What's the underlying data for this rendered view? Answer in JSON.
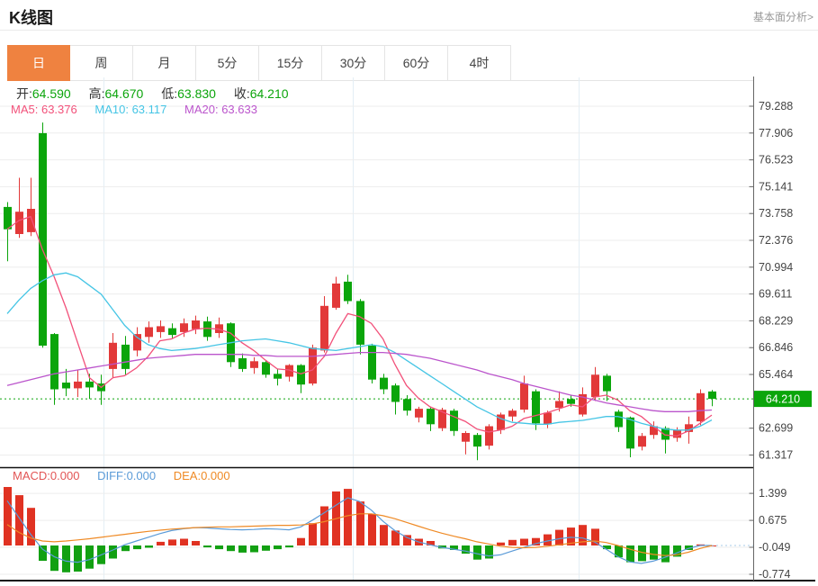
{
  "header": {
    "title": "K线图",
    "link": "基本面分析>"
  },
  "tabs": {
    "items": [
      "日",
      "周",
      "月",
      "5分",
      "15分",
      "30分",
      "60分",
      "4时"
    ],
    "selected_index": 0,
    "selected_label": "日"
  },
  "legend": {
    "ohlc": {
      "open": {
        "label": "开:",
        "value": "64.590"
      },
      "high": {
        "label": "高:",
        "value": "64.670"
      },
      "low": {
        "label": "低:",
        "value": "63.830"
      },
      "close": {
        "label": "收:",
        "value": "64.210"
      }
    },
    "ma": {
      "ma5": {
        "label": "MA5:",
        "value": "63.376"
      },
      "ma10": {
        "label": "MA10:",
        "value": "63.117"
      },
      "ma20": {
        "label": "MA20:",
        "value": "63.633"
      }
    },
    "macd": {
      "macd": {
        "label": "MACD:",
        "value": "0.000"
      },
      "diff": {
        "label": "DIFF:",
        "value": "0.000"
      },
      "dea": {
        "label": "DEA:",
        "value": "0.000"
      }
    }
  },
  "colors": {
    "up": "#e23939",
    "down": "#0ba50b",
    "ma5": "#f2517a",
    "ma10": "#45c5e5",
    "ma20": "#bb55cc",
    "diff": "#5b9bd8",
    "dea": "#ef8a25",
    "macd_label": "#e25555",
    "hist_up": "#e03222",
    "hist_down": "#12a012",
    "tab_active_bg": "#ef8240",
    "price_tag_bg": "#0ba50b",
    "grid": "#ededed",
    "vgrid": "#e3eef5",
    "axis": "#666666",
    "axis_text": "#444444"
  },
  "chart_data": {
    "type": "candlestick",
    "title": "K线图",
    "period": "日",
    "current_price": 64.21,
    "price_axis_ticks": [
      79.288,
      77.906,
      76.523,
      75.141,
      73.758,
      72.376,
      70.994,
      69.611,
      68.229,
      66.846,
      65.464,
      62.699,
      61.317
    ],
    "macd_axis_ticks": [
      1.399,
      0.675,
      -0.049,
      -0.774
    ],
    "candles": [
      [
        74.1,
        74.35,
        71.3,
        72.95
      ],
      [
        72.7,
        75.6,
        72.5,
        73.85
      ],
      [
        72.8,
        75.6,
        72.6,
        74.0
      ],
      [
        77.9,
        78.45,
        66.85,
        66.95
      ],
      [
        67.55,
        67.6,
        63.9,
        64.7
      ],
      [
        65.05,
        65.75,
        64.35,
        64.75
      ],
      [
        64.75,
        65.7,
        64.3,
        65.1
      ],
      [
        65.1,
        65.5,
        64.2,
        64.8
      ],
      [
        65.0,
        65.45,
        63.9,
        64.6
      ],
      [
        65.75,
        67.6,
        65.3,
        67.1
      ],
      [
        67.0,
        67.45,
        65.45,
        65.75
      ],
      [
        66.7,
        67.9,
        66.4,
        67.55
      ],
      [
        67.4,
        68.2,
        67.1,
        67.9
      ],
      [
        67.65,
        68.25,
        67.35,
        67.95
      ],
      [
        67.85,
        68.1,
        67.3,
        67.5
      ],
      [
        67.65,
        68.35,
        67.4,
        68.1
      ],
      [
        67.8,
        68.5,
        67.55,
        68.25
      ],
      [
        68.2,
        68.45,
        67.2,
        67.4
      ],
      [
        67.6,
        68.4,
        67.35,
        68.05
      ],
      [
        68.1,
        68.15,
        65.85,
        66.1
      ],
      [
        66.3,
        66.55,
        65.6,
        65.75
      ],
      [
        65.8,
        66.35,
        65.5,
        66.15
      ],
      [
        66.1,
        66.2,
        65.3,
        65.45
      ],
      [
        65.5,
        65.75,
        64.9,
        65.25
      ],
      [
        65.35,
        66.0,
        65.1,
        65.95
      ],
      [
        65.95,
        66.0,
        64.5,
        64.95
      ],
      [
        65.0,
        67.0,
        64.9,
        66.85
      ],
      [
        66.7,
        69.5,
        66.6,
        69.0
      ],
      [
        68.9,
        70.5,
        68.8,
        70.15
      ],
      [
        70.25,
        70.6,
        69.1,
        69.25
      ],
      [
        69.25,
        69.35,
        66.5,
        67.0
      ],
      [
        66.95,
        67.05,
        65.0,
        65.2
      ],
      [
        65.3,
        65.5,
        64.45,
        64.7
      ],
      [
        64.9,
        65.0,
        63.4,
        64.05
      ],
      [
        64.2,
        64.4,
        63.35,
        63.6
      ],
      [
        63.25,
        63.8,
        63.0,
        63.7
      ],
      [
        63.7,
        63.8,
        62.55,
        62.9
      ],
      [
        62.7,
        63.75,
        62.55,
        63.65
      ],
      [
        63.6,
        63.7,
        62.3,
        62.55
      ],
      [
        62.0,
        62.55,
        61.35,
        62.45
      ],
      [
        62.35,
        62.45,
        61.05,
        61.75
      ],
      [
        61.8,
        62.9,
        61.6,
        62.8
      ],
      [
        62.6,
        63.5,
        62.4,
        63.4
      ],
      [
        63.3,
        63.7,
        63.05,
        63.6
      ],
      [
        63.65,
        65.4,
        63.5,
        65.0
      ],
      [
        64.6,
        64.7,
        62.6,
        62.95
      ],
      [
        62.9,
        63.6,
        62.7,
        63.5
      ],
      [
        63.75,
        64.6,
        63.55,
        64.1
      ],
      [
        64.2,
        64.4,
        63.8,
        63.95
      ],
      [
        63.4,
        64.8,
        63.3,
        64.45
      ],
      [
        64.3,
        65.85,
        64.1,
        65.45
      ],
      [
        65.4,
        65.5,
        64.1,
        64.6
      ],
      [
        63.55,
        63.65,
        62.5,
        62.75
      ],
      [
        63.25,
        63.3,
        61.2,
        61.65
      ],
      [
        61.75,
        62.45,
        61.55,
        62.3
      ],
      [
        62.35,
        63.05,
        62.15,
        62.8
      ],
      [
        62.7,
        62.8,
        61.4,
        62.1
      ],
      [
        62.2,
        62.75,
        62.0,
        62.6
      ],
      [
        62.5,
        63.3,
        61.9,
        62.9
      ],
      [
        63.05,
        64.7,
        62.85,
        64.5
      ],
      [
        64.59,
        64.67,
        63.83,
        64.21
      ]
    ],
    "ma5": [
      72.95,
      73.4,
      73.6,
      71.9,
      70.5,
      68.9,
      67.1,
      65.3,
      64.8,
      65.3,
      65.4,
      65.8,
      66.4,
      67.2,
      67.3,
      67.6,
      67.8,
      67.85,
      67.8,
      67.6,
      67.1,
      66.7,
      66.2,
      65.75,
      65.7,
      65.5,
      65.7,
      66.4,
      67.6,
      68.6,
      68.45,
      68.1,
      67.3,
      66.0,
      64.9,
      64.25,
      63.8,
      63.55,
      63.3,
      63.05,
      62.65,
      62.5,
      62.6,
      62.8,
      63.2,
      63.35,
      63.5,
      63.7,
      63.9,
      63.8,
      64.3,
      64.4,
      64.15,
      63.6,
      63.3,
      62.8,
      62.35,
      62.3,
      62.55,
      62.95,
      63.376
    ],
    "ma10": [
      68.6,
      69.3,
      69.9,
      70.3,
      70.6,
      70.7,
      70.5,
      70.05,
      69.6,
      68.8,
      68.0,
      67.4,
      67.0,
      66.8,
      66.7,
      66.75,
      66.8,
      66.9,
      67.0,
      67.1,
      67.2,
      67.25,
      67.3,
      67.2,
      67.1,
      66.95,
      66.8,
      66.75,
      66.7,
      66.8,
      66.9,
      67.0,
      66.9,
      66.6,
      66.2,
      65.8,
      65.4,
      65.0,
      64.6,
      64.2,
      63.8,
      63.5,
      63.2,
      63.0,
      62.95,
      62.9,
      62.9,
      63.0,
      63.05,
      63.1,
      63.2,
      63.3,
      63.3,
      63.15,
      62.95,
      62.8,
      62.65,
      62.6,
      62.6,
      62.8,
      63.117
    ],
    "ma20": [
      64.9,
      65.05,
      65.2,
      65.35,
      65.5,
      65.6,
      65.7,
      65.8,
      65.9,
      66.0,
      66.1,
      66.2,
      66.3,
      66.35,
      66.4,
      66.45,
      66.5,
      66.5,
      66.5,
      66.5,
      66.5,
      66.45,
      66.45,
      66.4,
      66.4,
      66.4,
      66.4,
      66.45,
      66.5,
      66.55,
      66.6,
      66.6,
      66.6,
      66.55,
      66.5,
      66.4,
      66.3,
      66.15,
      66.0,
      65.85,
      65.7,
      65.5,
      65.35,
      65.2,
      65.0,
      64.85,
      64.7,
      64.55,
      64.4,
      64.3,
      64.15,
      64.0,
      63.9,
      63.8,
      63.7,
      63.6,
      63.55,
      63.55,
      63.55,
      63.6,
      63.633
    ],
    "macd_hist": [
      1.57,
      1.35,
      1.01,
      -0.41,
      -0.68,
      -0.72,
      -0.7,
      -0.62,
      -0.5,
      -0.35,
      -0.15,
      -0.1,
      -0.06,
      0.1,
      0.16,
      0.18,
      0.12,
      -0.05,
      -0.1,
      -0.15,
      -0.19,
      -0.18,
      -0.14,
      -0.1,
      -0.05,
      0.2,
      0.6,
      1.05,
      1.45,
      1.52,
      1.18,
      0.85,
      0.55,
      0.4,
      0.28,
      0.18,
      0.12,
      -0.08,
      -0.12,
      -0.22,
      -0.38,
      -0.35,
      0.08,
      0.15,
      0.18,
      0.2,
      0.3,
      0.42,
      0.48,
      0.55,
      0.45,
      -0.1,
      -0.32,
      -0.45,
      -0.42,
      -0.38,
      -0.45,
      -0.3,
      -0.12,
      0.03,
      0.0
    ],
    "diff": [
      1.2,
      0.75,
      0.3,
      -0.1,
      -0.3,
      -0.42,
      -0.45,
      -0.38,
      -0.25,
      -0.12,
      0.02,
      0.12,
      0.22,
      0.32,
      0.4,
      0.45,
      0.48,
      0.47,
      0.45,
      0.43,
      0.42,
      0.43,
      0.45,
      0.44,
      0.42,
      0.5,
      0.68,
      0.88,
      1.08,
      1.28,
      1.18,
      0.95,
      0.65,
      0.4,
      0.22,
      0.1,
      0.02,
      -0.05,
      -0.1,
      -0.15,
      -0.22,
      -0.28,
      -0.25,
      -0.15,
      -0.05,
      0.05,
      0.12,
      0.18,
      0.22,
      0.2,
      0.1,
      -0.1,
      -0.3,
      -0.44,
      -0.48,
      -0.42,
      -0.32,
      -0.2,
      -0.08,
      0.0,
      0.0
    ],
    "dea": [
      0.56,
      0.35,
      0.2,
      0.12,
      0.1,
      0.12,
      0.15,
      0.18,
      0.22,
      0.26,
      0.3,
      0.34,
      0.38,
      0.41,
      0.44,
      0.46,
      0.48,
      0.49,
      0.5,
      0.5,
      0.51,
      0.52,
      0.53,
      0.54,
      0.54,
      0.55,
      0.58,
      0.64,
      0.72,
      0.8,
      0.85,
      0.85,
      0.8,
      0.72,
      0.62,
      0.52,
      0.42,
      0.33,
      0.25,
      0.18,
      0.1,
      0.04,
      -0.02,
      -0.05,
      -0.06,
      -0.05,
      -0.02,
      0.02,
      0.06,
      0.1,
      0.12,
      0.08,
      0.0,
      -0.1,
      -0.18,
      -0.24,
      -0.27,
      -0.25,
      -0.18,
      -0.08,
      0.0
    ]
  }
}
